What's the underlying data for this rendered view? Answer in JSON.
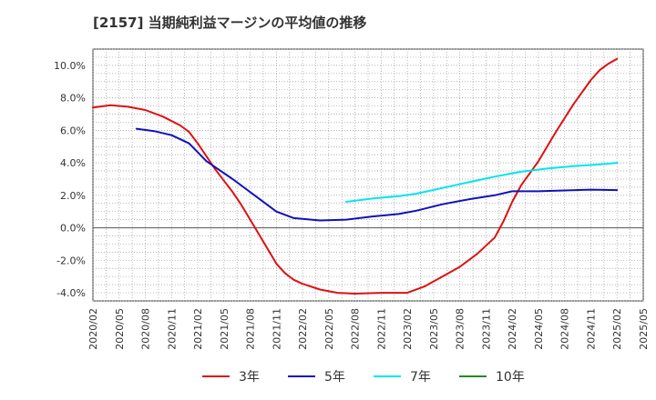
{
  "chart_data": {
    "type": "line",
    "title": "[2157]  当期純利益マージンの平均値の推移",
    "xlabel": "",
    "ylabel": "",
    "x_ticks": [
      "2020/02",
      "2020/05",
      "2020/08",
      "2020/11",
      "2021/02",
      "2021/05",
      "2021/08",
      "2021/11",
      "2022/02",
      "2022/05",
      "2022/08",
      "2022/11",
      "2023/02",
      "2023/05",
      "2023/08",
      "2023/11",
      "2024/02",
      "2024/05",
      "2024/08",
      "2024/11",
      "2025/02",
      "2025/05"
    ],
    "y_ticks": [
      "10.0%",
      "8.0%",
      "6.0%",
      "4.0%",
      "2.0%",
      "0.0%",
      "-2.0%",
      "-4.0%"
    ],
    "y_tick_values": [
      10,
      8,
      6,
      4,
      2,
      0,
      -2,
      -4
    ],
    "ylim": [
      -4.5,
      11
    ],
    "grid": true,
    "legend_position": "bottom",
    "series": [
      {
        "name": "3年",
        "color": "#dd1111",
        "points": [
          [
            "2020/02",
            7.4
          ],
          [
            "2020/04",
            7.55
          ],
          [
            "2020/06",
            7.45
          ],
          [
            "2020/08",
            7.25
          ],
          [
            "2020/10",
            6.85
          ],
          [
            "2020/12",
            6.3
          ],
          [
            "2021/01",
            5.9
          ],
          [
            "2021/02",
            5.2
          ],
          [
            "2021/03",
            4.4
          ],
          [
            "2021/04",
            3.6
          ],
          [
            "2021/05",
            2.9
          ],
          [
            "2021/06",
            2.2
          ],
          [
            "2021/07",
            1.4
          ],
          [
            "2021/08",
            0.5
          ],
          [
            "2021/09",
            -0.4
          ],
          [
            "2021/10",
            -1.3
          ],
          [
            "2021/11",
            -2.2
          ],
          [
            "2021/12",
            -2.8
          ],
          [
            "2022/01",
            -3.2
          ],
          [
            "2022/02",
            -3.45
          ],
          [
            "2022/04",
            -3.8
          ],
          [
            "2022/06",
            -4.0
          ],
          [
            "2022/08",
            -4.05
          ],
          [
            "2022/11",
            -4.0
          ],
          [
            "2023/02",
            -4.0
          ],
          [
            "2023/04",
            -3.6
          ],
          [
            "2023/06",
            -3.0
          ],
          [
            "2023/08",
            -2.4
          ],
          [
            "2023/10",
            -1.6
          ],
          [
            "2023/12",
            -0.6
          ],
          [
            "2024/01",
            0.4
          ],
          [
            "2024/02",
            1.6
          ],
          [
            "2024/03",
            2.6
          ],
          [
            "2024/05",
            4.1
          ],
          [
            "2024/07",
            5.9
          ],
          [
            "2024/09",
            7.6
          ],
          [
            "2024/11",
            9.1
          ],
          [
            "2024/12",
            9.7
          ],
          [
            "2025/01",
            10.1
          ],
          [
            "2025/02",
            10.4
          ]
        ]
      },
      {
        "name": "5年",
        "color": "#1111bb",
        "points": [
          [
            "2020/07",
            6.1
          ],
          [
            "2020/09",
            5.95
          ],
          [
            "2020/11",
            5.7
          ],
          [
            "2021/01",
            5.2
          ],
          [
            "2021/03",
            4.1
          ],
          [
            "2021/06",
            3.0
          ],
          [
            "2021/09",
            1.8
          ],
          [
            "2021/11",
            1.0
          ],
          [
            "2022/01",
            0.6
          ],
          [
            "2022/04",
            0.45
          ],
          [
            "2022/07",
            0.5
          ],
          [
            "2022/10",
            0.7
          ],
          [
            "2023/01",
            0.85
          ],
          [
            "2023/03",
            1.05
          ],
          [
            "2023/06",
            1.45
          ],
          [
            "2023/09",
            1.75
          ],
          [
            "2023/12",
            2.0
          ],
          [
            "2024/02",
            2.25
          ],
          [
            "2024/05",
            2.25
          ],
          [
            "2024/08",
            2.3
          ],
          [
            "2024/11",
            2.35
          ],
          [
            "2025/02",
            2.32
          ]
        ]
      },
      {
        "name": "7年",
        "color": "#00e5ee",
        "points": [
          [
            "2022/07",
            1.6
          ],
          [
            "2022/10",
            1.8
          ],
          [
            "2023/01",
            1.95
          ],
          [
            "2023/03",
            2.1
          ],
          [
            "2023/06",
            2.45
          ],
          [
            "2023/09",
            2.8
          ],
          [
            "2023/12",
            3.15
          ],
          [
            "2024/03",
            3.45
          ],
          [
            "2024/06",
            3.65
          ],
          [
            "2024/09",
            3.8
          ],
          [
            "2024/12",
            3.9
          ],
          [
            "2025/02",
            4.0
          ]
        ]
      },
      {
        "name": "10年",
        "color": "#228b22",
        "points": []
      }
    ]
  }
}
